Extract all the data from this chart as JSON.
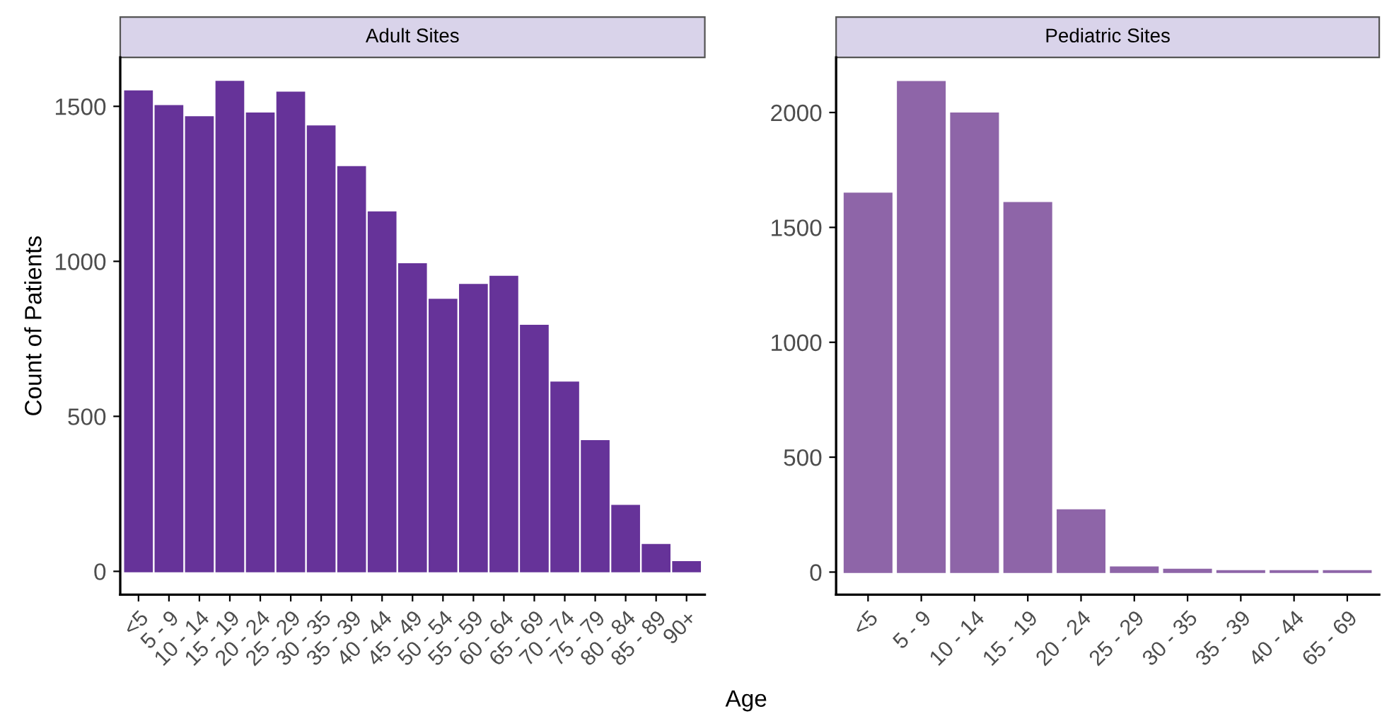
{
  "chart_data": [
    {
      "type": "bar",
      "title": "Adult Sites",
      "ylabel": "Count of Patients",
      "categories": [
        "<5",
        "5 - 9",
        "10 - 14",
        "15 - 19",
        "20 - 24",
        "25 - 29",
        "30 - 35",
        "35 - 39",
        "40 - 44",
        "45 - 49",
        "50 - 54",
        "55 - 59",
        "60 - 64",
        "65 - 69",
        "70 - 74",
        "75 - 79",
        "80 - 84",
        "85 - 89",
        "90+"
      ],
      "values": [
        1548,
        1501,
        1465,
        1579,
        1477,
        1544,
        1435,
        1304,
        1158,
        991,
        876,
        924,
        950,
        792,
        609,
        420,
        211,
        85,
        30
      ],
      "color": "#663399",
      "ylim": [
        -75,
        1658
      ],
      "yticks": [
        0,
        500,
        1000,
        1500
      ],
      "grid": false,
      "legend": false
    },
    {
      "type": "bar",
      "title": "Pediatric Sites",
      "xlabel": "Age",
      "categories": [
        "<5",
        "5 - 9",
        "10 - 14",
        "15 - 19",
        "20 - 24",
        "25 - 29",
        "30 - 35",
        "35 - 39",
        "40 - 44",
        "65 - 69"
      ],
      "values": [
        1647,
        2133,
        1996,
        1606,
        269,
        20,
        10,
        4,
        4,
        4
      ],
      "color": "#8e65a8",
      "ylim": [
        -98,
        2240
      ],
      "yticks": [
        0,
        500,
        1000,
        1500,
        2000
      ],
      "grid": false,
      "legend": false
    }
  ]
}
